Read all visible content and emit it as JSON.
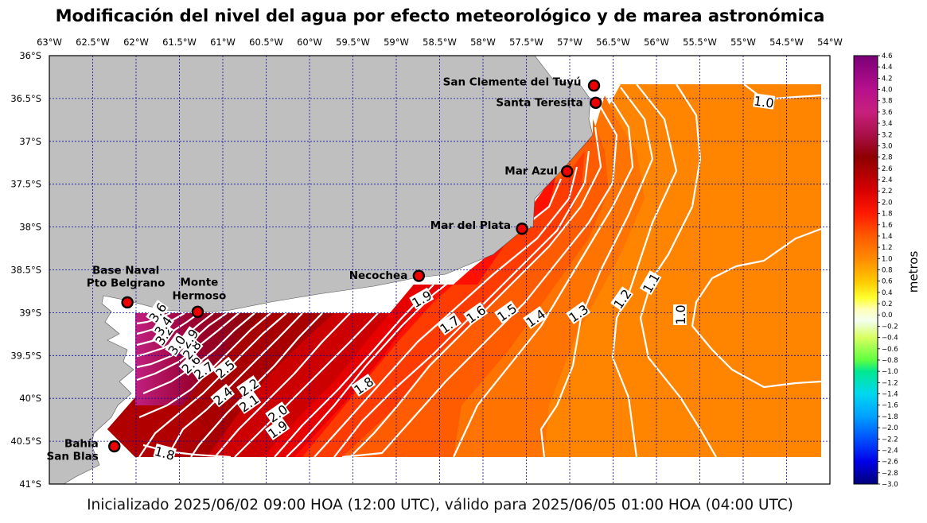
{
  "title": "Modificación del nivel del agua por efecto meteorológico y de marea astronómica",
  "caption": "Inicializado 2025/06/02 09:00 HOA (12:00 UTC), válido para 2025/06/05 01:00 HOA (04:00 UTC)",
  "colors": {
    "land": "#bfbfbf",
    "graticule": "#0a0aa0",
    "contour_line": "#ffffff",
    "station_marker": "#ee0000"
  },
  "lon_labels": [
    "63°W",
    "62.5°W",
    "62°W",
    "61.5°W",
    "61°W",
    "60.5°W",
    "60°W",
    "59.5°W",
    "59°W",
    "58.5°W",
    "58°W",
    "57.5°W",
    "57°W",
    "56.5°W",
    "56°W",
    "55.5°W",
    "55°W",
    "54.5°W",
    "54°W"
  ],
  "lat_labels": [
    "36°S",
    "36.5°S",
    "37°S",
    "37.5°S",
    "38°S",
    "38.5°S",
    "39°S",
    "39.5°S",
    "40°S",
    "40.5°S",
    "41°S"
  ],
  "stations": [
    {
      "name": "San Clemente del Tuyú",
      "lon": -56.72,
      "lat": -36.35
    },
    {
      "name": "Santa Teresita",
      "lon": -56.7,
      "lat": -36.55
    },
    {
      "name": "Mar Azul",
      "lon": -57.03,
      "lat": -37.35
    },
    {
      "name": "Mar del Plata",
      "lon": -57.55,
      "lat": -38.02
    },
    {
      "name": "Necochea",
      "lon": -58.74,
      "lat": -38.57
    },
    {
      "name": "Base Naval",
      "name2": "Pto Belgrano",
      "lon": -62.1,
      "lat": -38.88
    },
    {
      "name": "Monte",
      "name2": "Hermoso",
      "lon": -61.29,
      "lat": -38.99
    },
    {
      "name": "Bahía",
      "name2": "San Blas",
      "lon": -62.25,
      "lat": -40.56
    }
  ],
  "contour_labels": [
    "1.0",
    "1.0",
    "1.1",
    "1.2",
    "1.3",
    "1.4",
    "1.5",
    "1.6",
    "1.7",
    "1.9",
    "1.8",
    "2.0",
    "1.9",
    "2.1",
    "2.2",
    "2.4",
    "2.5",
    "2.7",
    "2.6",
    "2.8",
    "2.9",
    "3.0",
    "3.2",
    "3.4",
    "3.6",
    "1.8"
  ],
  "colorbar": {
    "label": "metros",
    "ticks": [
      "4.6",
      "4.4",
      "4.2",
      "4.0",
      "3.8",
      "3.6",
      "3.4",
      "3.2",
      "3.0",
      "2.8",
      "2.6",
      "2.4",
      "2.2",
      "2.0",
      "1.8",
      "1.6",
      "1.4",
      "1.2",
      "1.0",
      "0.8",
      "0.6",
      "0.4",
      "0.2",
      "0.0",
      "−0.2",
      "−0.4",
      "−0.6",
      "−0.8",
      "−1.0",
      "−1.2",
      "−1.4",
      "−1.6",
      "−1.8",
      "−2.0",
      "−2.2",
      "−2.4",
      "−2.6",
      "−2.8",
      "−3.0"
    ],
    "stops": [
      {
        "v": 4.6,
        "c": "#7a0077"
      },
      {
        "v": 4.0,
        "c": "#b6108c"
      },
      {
        "v": 3.6,
        "c": "#c8207c"
      },
      {
        "v": 3.2,
        "c": "#a8104a"
      },
      {
        "v": 2.8,
        "c": "#8e0000"
      },
      {
        "v": 2.2,
        "c": "#d80000"
      },
      {
        "v": 1.8,
        "c": "#ff1a00"
      },
      {
        "v": 1.4,
        "c": "#ff5a00"
      },
      {
        "v": 1.0,
        "c": "#ff8a00"
      },
      {
        "v": 0.6,
        "c": "#ffc800"
      },
      {
        "v": 0.3,
        "c": "#ffff30"
      },
      {
        "v": 0.1,
        "c": "#ffffb8"
      },
      {
        "v": -0.1,
        "c": "#f4fff0"
      },
      {
        "v": -0.4,
        "c": "#d8ff60"
      },
      {
        "v": -0.8,
        "c": "#60ff40"
      },
      {
        "v": -1.0,
        "c": "#00e890"
      },
      {
        "v": -1.4,
        "c": "#00d8f0"
      },
      {
        "v": -1.8,
        "c": "#00a0ff"
      },
      {
        "v": -2.2,
        "c": "#0050ff"
      },
      {
        "v": -2.6,
        "c": "#0000e8"
      },
      {
        "v": -3.0,
        "c": "#00007a"
      }
    ]
  }
}
